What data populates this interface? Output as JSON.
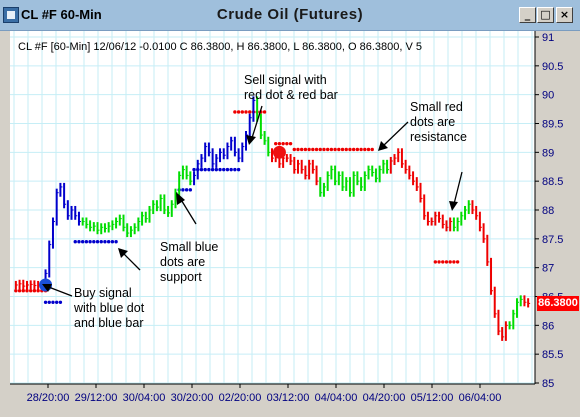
{
  "window": {
    "symbol_title": "CL #F 60-Min",
    "chart_title": "Crude Oil (Futures)",
    "minimize_glyph": "_",
    "restore_glyph": "□",
    "close_glyph": "×",
    "icon": "chart-window-icon"
  },
  "status_line": "CL #F [60-Min] 12/06/12  -0.0100 C 86.3800, H 86.3800, L 86.3800, O 86.3800, V 5",
  "last_price_label": "86.3800",
  "annotations": {
    "buy_signal": "Buy signal\nwith blue dot\nand blue bar",
    "support": "Small blue\ndots are\nsupport",
    "sell_signal": "Sell signal with\nred dot & red bar",
    "resistance": "Small red\ndots are\nresistance"
  },
  "colors": {
    "plot_bg": "#ffffff",
    "grid": "#c6eef6",
    "up_bar": "#00dd00",
    "blue_bar": "#0000cc",
    "red_bar": "#ee0000",
    "axis_text": "#000080",
    "price_tag": "#ff0000"
  },
  "chart_data": {
    "type": "ohlc",
    "y_axis": {
      "min": 85,
      "max": 91,
      "ticks": [
        85,
        85.5,
        86,
        86.5,
        87,
        87.5,
        88,
        88.5,
        89,
        89.5,
        90,
        90.5,
        91
      ]
    },
    "x_ticks": [
      "28/20:00",
      "29/12:00",
      "30/04:00",
      "30/20:00",
      "02/20:00",
      "03/12:00",
      "04/04:00",
      "04/20:00",
      "05/12:00",
      "06/04:00"
    ],
    "signals": [
      {
        "type": "buy",
        "price": 86.7
      },
      {
        "type": "sell",
        "price": 89.0
      }
    ],
    "segments": [
      {
        "color": "red",
        "values": [
          86.7,
          86.72,
          86.68,
          86.7,
          86.71,
          86.69,
          86.7,
          86.7
        ]
      },
      {
        "color": "blue",
        "values": [
          86.9,
          87.4,
          87.8,
          88.3,
          88.4,
          88.1,
          87.9,
          88.0,
          87.9,
          87.8
        ]
      },
      {
        "color": "green",
        "values": [
          87.8,
          87.75,
          87.7,
          87.72,
          87.65,
          87.7,
          87.68,
          87.72,
          87.75,
          87.8,
          87.85,
          87.7,
          87.6,
          87.65,
          87.7,
          87.8,
          87.9,
          87.85,
          88.0,
          88.1,
          88.05,
          88.2,
          88.0,
          87.95,
          88.1,
          88.3,
          88.6,
          88.7,
          88.6,
          88.5
        ]
      },
      {
        "color": "blue",
        "values": [
          88.6,
          88.8,
          88.9,
          89.1,
          89.0,
          88.8,
          88.9,
          89.0,
          88.95,
          89.1,
          89.2,
          89.0,
          88.9,
          89.1,
          89.3,
          89.6,
          89.9
        ]
      },
      {
        "color": "green",
        "values": [
          89.6,
          89.3,
          89.2,
          89.0
        ]
      },
      {
        "color": "red",
        "values": [
          88.9,
          89.0,
          88.8,
          88.9,
          88.9,
          88.85,
          88.7,
          88.8,
          88.7,
          88.6,
          88.8,
          88.7,
          88.5
        ]
      },
      {
        "color": "green",
        "values": [
          88.3,
          88.4,
          88.6,
          88.7,
          88.5,
          88.6,
          88.4,
          88.5,
          88.3,
          88.6,
          88.5,
          88.4,
          88.6,
          88.7,
          88.65,
          88.55,
          88.7,
          88.8,
          88.7
        ]
      },
      {
        "color": "red",
        "values": [
          88.85,
          88.9,
          89.0,
          88.8,
          88.7,
          88.6,
          88.5,
          88.4,
          88.2,
          87.9,
          87.8,
          87.8,
          87.9,
          87.85,
          87.75,
          87.7,
          87.8
        ]
      },
      {
        "color": "green",
        "values": [
          87.7,
          87.8,
          87.9,
          88.0,
          88.1
        ]
      },
      {
        "color": "red",
        "values": [
          88.0,
          87.9,
          87.7,
          87.5,
          87.1,
          86.6,
          86.2,
          85.9,
          85.8,
          86.0
        ]
      },
      {
        "color": "green",
        "values": [
          86.0,
          86.2,
          86.4,
          86.45
        ]
      },
      {
        "color": "red",
        "values": [
          86.4,
          86.38
        ]
      }
    ],
    "dots": [
      {
        "color": "red",
        "price": 86.6,
        "from": 0,
        "to": 8
      },
      {
        "color": "blue",
        "price": 86.4,
        "from": 8,
        "to": 12
      },
      {
        "color": "blue",
        "price": 87.45,
        "from": 16,
        "to": 27
      },
      {
        "color": "blue",
        "price": 88.35,
        "from": 44,
        "to": 47
      },
      {
        "color": "blue",
        "price": 88.7,
        "from": 48,
        "to": 60
      },
      {
        "color": "red",
        "price": 89.7,
        "from": 59,
        "to": 67
      },
      {
        "color": "red",
        "price": 89.15,
        "from": 70,
        "to": 74
      },
      {
        "color": "red",
        "price": 89.05,
        "from": 75,
        "to": 96
      },
      {
        "color": "red",
        "price": 87.1,
        "from": 113,
        "to": 119
      }
    ]
  }
}
